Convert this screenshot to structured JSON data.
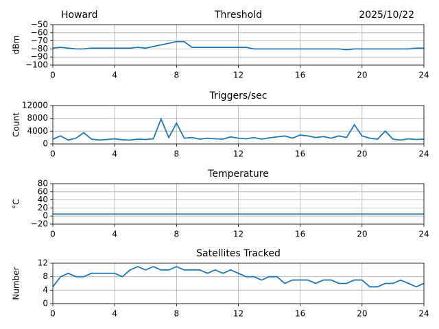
{
  "chart_data": [
    {
      "type": "line",
      "title": "Threshold",
      "title_left": "Howard",
      "title_right": "2025/10/22",
      "ylabel": "dBm",
      "color": "#1f77b4",
      "grid": true,
      "x": [
        0,
        0.5,
        1,
        1.5,
        2,
        2.5,
        3,
        3.5,
        4,
        4.5,
        5,
        5.5,
        6,
        6.5,
        7,
        7.5,
        8,
        8.5,
        9,
        9.5,
        10,
        10.5,
        11,
        11.5,
        12,
        12.5,
        13,
        13.5,
        14,
        14.5,
        15,
        15.5,
        16,
        16.5,
        17,
        17.5,
        18,
        18.5,
        19,
        19.5,
        20,
        20.5,
        21,
        21.5,
        22,
        22.5,
        23,
        23.5,
        24
      ],
      "values": [
        -79,
        -78,
        -79,
        -80,
        -80,
        -79,
        -79,
        -79,
        -79,
        -79,
        -79,
        -78,
        -79,
        -77,
        -75,
        -73,
        -71,
        -71,
        -78,
        -78,
        -78,
        -78,
        -78,
        -78,
        -78,
        -78,
        -80,
        -80,
        -80,
        -80,
        -80,
        -80,
        -80,
        -80,
        -80,
        -80,
        -80,
        -80,
        -81,
        -80,
        -80,
        -80,
        -80,
        -80,
        -80,
        -80,
        -80,
        -79,
        -79
      ],
      "xlim": [
        0,
        24
      ],
      "xticks": [
        0,
        4,
        8,
        12,
        16,
        20,
        24
      ],
      "ylim": [
        -100,
        -50
      ],
      "yticks": [
        {
          "value": -100,
          "label": "−100"
        },
        {
          "value": -90,
          "label": "−90"
        },
        {
          "value": -80,
          "label": "−80"
        },
        {
          "value": -70,
          "label": "−70"
        },
        {
          "value": -60,
          "label": "−60"
        },
        {
          "value": -50,
          "label": "−50"
        }
      ]
    },
    {
      "type": "line",
      "title": "Triggers/sec",
      "ylabel": "Count",
      "color": "#1f77b4",
      "grid": true,
      "x": [
        0,
        0.5,
        1,
        1.5,
        2,
        2.5,
        3,
        3.5,
        4,
        4.5,
        5,
        5.5,
        6,
        6.5,
        7,
        7.5,
        8,
        8.5,
        9,
        9.5,
        10,
        10.5,
        11,
        11.5,
        12,
        12.5,
        13,
        13.5,
        14,
        14.5,
        15,
        15.5,
        16,
        16.5,
        17,
        17.5,
        18,
        18.5,
        19,
        19.5,
        20,
        20.5,
        21,
        21.5,
        22,
        22.5,
        23,
        23.5,
        24
      ],
      "values": [
        1500,
        2500,
        1200,
        1800,
        3500,
        1500,
        1200,
        1400,
        1600,
        1300,
        1200,
        1500,
        1400,
        1600,
        7800,
        2000,
        6500,
        1800,
        2000,
        1500,
        1800,
        1600,
        1500,
        2200,
        1800,
        1600,
        2000,
        1500,
        1900,
        2200,
        2500,
        1800,
        2800,
        2500,
        2000,
        2300,
        1800,
        2500,
        2000,
        6000,
        2500,
        1800,
        1500,
        4000,
        1500,
        1200,
        1600,
        1400,
        1500
      ],
      "xlim": [
        0,
        24
      ],
      "xticks": [
        0,
        4,
        8,
        12,
        16,
        20,
        24
      ],
      "ylim": [
        0,
        12000
      ],
      "yticks": [
        0,
        4000,
        8000,
        12000
      ]
    },
    {
      "type": "line",
      "title": "Temperature",
      "ylabel": "°C",
      "color": "#1f77b4",
      "grid": true,
      "x": [
        0,
        24
      ],
      "values": [
        5,
        5
      ],
      "xlim": [
        0,
        24
      ],
      "xticks": [
        0,
        4,
        8,
        12,
        16,
        20,
        24
      ],
      "ylim": [
        -20,
        80
      ],
      "yticks": [
        {
          "value": -20,
          "label": "−20"
        },
        0,
        20,
        40,
        60,
        80
      ]
    },
    {
      "type": "line",
      "title": "Satellites Tracked",
      "ylabel": "Number",
      "color": "#1f77b4",
      "grid": true,
      "x": [
        0,
        0.5,
        1,
        1.5,
        2,
        2.5,
        3,
        3.5,
        4,
        4.5,
        5,
        5.5,
        6,
        6.5,
        7,
        7.5,
        8,
        8.5,
        9,
        9.5,
        10,
        10.5,
        11,
        11.5,
        12,
        12.5,
        13,
        13.5,
        14,
        14.5,
        15,
        15.5,
        16,
        16.5,
        17,
        17.5,
        18,
        18.5,
        19,
        19.5,
        20,
        20.5,
        21,
        21.5,
        22,
        22.5,
        23,
        23.5,
        24
      ],
      "values": [
        5,
        8,
        9,
        8,
        8,
        9,
        9,
        9,
        9,
        8,
        10,
        11,
        10,
        11,
        10,
        10,
        11,
        10,
        10,
        10,
        9,
        10,
        9,
        10,
        9,
        8,
        8,
        7,
        8,
        8,
        6,
        7,
        7,
        7,
        6,
        7,
        7,
        6,
        6,
        7,
        7,
        5,
        5,
        6,
        6,
        7,
        6,
        5,
        6
      ],
      "xlim": [
        0,
        24
      ],
      "xticks": [
        0,
        4,
        8,
        12,
        16,
        20,
        24
      ],
      "ylim": [
        0,
        12
      ],
      "yticks": [
        0,
        4,
        8,
        12
      ]
    }
  ]
}
